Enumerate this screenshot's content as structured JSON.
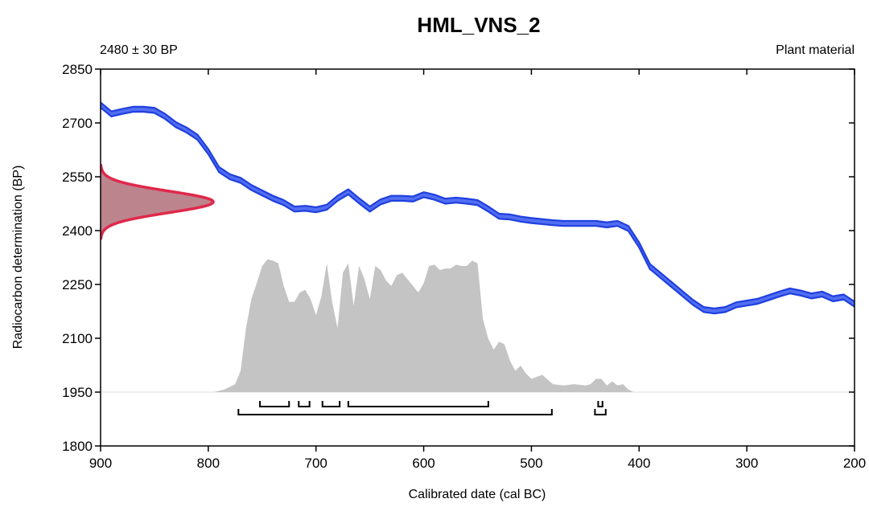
{
  "chart_data": {
    "type": "area",
    "title": "HML_VNS_2",
    "determination": "2480 ± 30 BP",
    "material": "Plant material",
    "xlabel": "Calibrated date (cal BC)",
    "ylabel": "Radiocarbon determination (BP)",
    "x_ticks": [
      "900",
      "800",
      "700",
      "600",
      "500",
      "400",
      "300",
      "200"
    ],
    "y_ticks": [
      "1800",
      "1950",
      "2100",
      "2250",
      "2400",
      "2550",
      "2700",
      "2850"
    ],
    "xlim": [
      900,
      200
    ],
    "ylim": [
      1800,
      2850
    ],
    "colors": {
      "calibration_curve": "#3355ee",
      "radiocarbon_pdf": "#e0284a",
      "calibrated_pdf": "#c4c4c4"
    },
    "calibration_curve": {
      "years_cal_bc": [
        900,
        890,
        880,
        870,
        860,
        850,
        840,
        830,
        820,
        810,
        800,
        790,
        780,
        770,
        760,
        750,
        740,
        730,
        720,
        710,
        700,
        690,
        680,
        670,
        660,
        650,
        640,
        630,
        620,
        610,
        600,
        590,
        580,
        570,
        560,
        550,
        540,
        530,
        520,
        510,
        500,
        490,
        480,
        470,
        460,
        450,
        440,
        430,
        420,
        410,
        400,
        390,
        380,
        370,
        360,
        350,
        340,
        330,
        320,
        310,
        300,
        290,
        280,
        270,
        260,
        250,
        240,
        230,
        220,
        210,
        200
      ],
      "bp": [
        2750,
        2725,
        2732,
        2738,
        2738,
        2735,
        2718,
        2695,
        2680,
        2660,
        2620,
        2570,
        2550,
        2540,
        2520,
        2505,
        2490,
        2478,
        2460,
        2462,
        2458,
        2465,
        2490,
        2508,
        2483,
        2460,
        2480,
        2490,
        2490,
        2488,
        2500,
        2493,
        2482,
        2485,
        2482,
        2478,
        2460,
        2440,
        2438,
        2432,
        2428,
        2425,
        2422,
        2420,
        2420,
        2420,
        2420,
        2416,
        2420,
        2406,
        2360,
        2300,
        2275,
        2250,
        2225,
        2200,
        2180,
        2176,
        2180,
        2193,
        2198,
        2203,
        2213,
        2223,
        2232,
        2226,
        2218,
        2223,
        2210,
        2215,
        2195
      ],
      "sigma": 7
    },
    "radiocarbon_pdf": {
      "mean_bp": 2480,
      "sigma_bp": 30
    },
    "calibrated_pdf": {
      "years_cal_bc": [
        795,
        785,
        775,
        770,
        765,
        760,
        755,
        750,
        745,
        740,
        735,
        730,
        725,
        720,
        715,
        710,
        705,
        700,
        695,
        690,
        685,
        680,
        675,
        670,
        665,
        660,
        655,
        650,
        645,
        640,
        635,
        630,
        625,
        620,
        615,
        610,
        605,
        600,
        595,
        590,
        585,
        580,
        575,
        570,
        565,
        560,
        555,
        550,
        545,
        540,
        535,
        530,
        525,
        520,
        515,
        510,
        505,
        500,
        490,
        480,
        470,
        460,
        450,
        445,
        440,
        435,
        430,
        425,
        420,
        415,
        410,
        405
      ],
      "density": [
        0.0,
        0.02,
        0.06,
        0.16,
        0.48,
        0.7,
        0.82,
        0.95,
        1.0,
        0.99,
        0.97,
        0.8,
        0.68,
        0.68,
        0.75,
        0.77,
        0.7,
        0.58,
        0.72,
        0.97,
        0.68,
        0.48,
        0.9,
        0.97,
        0.65,
        0.95,
        0.85,
        0.7,
        0.95,
        0.92,
        0.84,
        0.8,
        0.88,
        0.9,
        0.85,
        0.8,
        0.75,
        0.82,
        0.95,
        0.96,
        0.92,
        0.93,
        0.93,
        0.96,
        0.95,
        0.95,
        0.99,
        0.97,
        0.55,
        0.4,
        0.32,
        0.38,
        0.36,
        0.24,
        0.16,
        0.2,
        0.14,
        0.1,
        0.13,
        0.06,
        0.05,
        0.06,
        0.05,
        0.06,
        0.1,
        0.1,
        0.05,
        0.08,
        0.05,
        0.06,
        0.02,
        0.0
      ],
      "max_height_bp": 370
    },
    "ranges_1sigma": [
      [
        752,
        725
      ],
      [
        716,
        706
      ],
      [
        694,
        678
      ],
      [
        670,
        540
      ],
      [
        438,
        434
      ]
    ],
    "ranges_2sigma": [
      [
        772,
        481
      ],
      [
        441,
        431
      ]
    ]
  }
}
